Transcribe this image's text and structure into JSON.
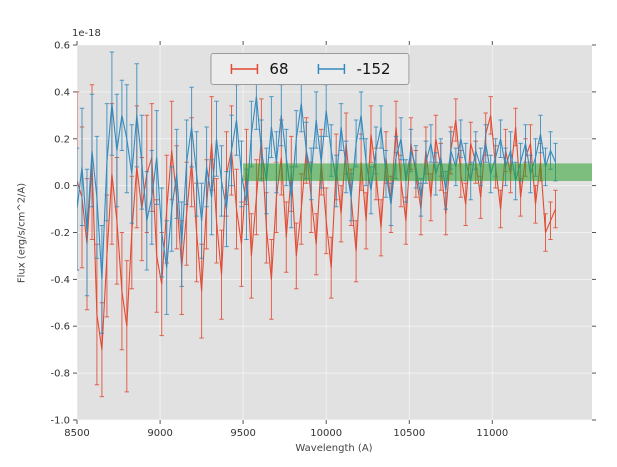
{
  "figure": {
    "background": "#ffffff",
    "plot_background": "#e1e1e1",
    "grid_color": "#ffffff",
    "tick_color": "#555555",
    "text_color": "#333333"
  },
  "chart_data": {
    "type": "line",
    "subtype": "errorbar-spectrum",
    "title": "",
    "offset_text": "1e-18",
    "xlabel": "Wavelength (A)",
    "ylabel": "Flux (erg/s/cm^2/A)",
    "xlim": [
      8500,
      11600
    ],
    "ylim": [
      -1.0,
      0.6
    ],
    "x_ticks": [
      8500,
      9000,
      9500,
      10000,
      10500,
      11000
    ],
    "y_ticks": [
      -1.0,
      -0.8,
      -0.6,
      -0.4,
      -0.2,
      0.0,
      0.2,
      0.4,
      0.6
    ],
    "y_tick_labels": [
      "-1.0",
      "-0.8",
      "-0.6",
      "-0.4",
      "-0.2",
      "0.0",
      "0.2",
      "0.4",
      "0.6"
    ],
    "units_note": "flux values plotted in units of 1e-18 erg/s/cm^2/A",
    "legend_position": "upper center",
    "grid": true,
    "x_start": 8500,
    "x_step": 30,
    "band": {
      "x0": 9500,
      "x1": 11600,
      "y0": 0.02,
      "y1": 0.095,
      "color": "#2ca02c",
      "opacity": 0.55
    },
    "series": [
      {
        "name": "68",
        "color": "#e24a33",
        "y": [
          0.02,
          -0.05,
          -0.25,
          0.1,
          -0.55,
          -0.7,
          -0.3,
          0.05,
          -0.15,
          -0.45,
          -0.6,
          -0.2,
          0.08,
          -0.1,
          0.05,
          0.12,
          -0.3,
          -0.42,
          -0.1,
          0.15,
          -0.05,
          -0.35,
          -0.12,
          0.1,
          -0.2,
          -0.45,
          -0.08,
          0.18,
          -0.15,
          -0.38,
          0.05,
          0.15,
          -0.1,
          -0.25,
          0.08,
          -0.3,
          -0.05,
          0.2,
          -0.18,
          -0.4,
          -0.05,
          0.12,
          -0.22,
          0.05,
          -0.3,
          -0.1,
          0.15,
          -0.05,
          -0.25,
          0.1,
          -0.15,
          -0.35,
          0.08,
          -0.12,
          0.18,
          -0.05,
          -0.28,
          0.1,
          -0.15,
          0.22,
          0.05,
          -0.18,
          0.12,
          -0.08,
          0.25,
          0.02,
          -0.15,
          0.18,
          0.05,
          -0.1,
          0.15,
          -0.05,
          0.2,
          0.08,
          -0.12,
          0.15,
          0.28,
          0.05,
          -0.08,
          0.18,
          0.1,
          -0.05,
          0.22,
          0.3,
          0.08,
          -0.1,
          0.15,
          0.05,
          0.25,
          -0.05,
          0.12,
          0.18,
          -0.08,
          0.1,
          -0.2,
          -0.15,
          -0.1
        ],
        "err": [
          0.38,
          0.3,
          0.28,
          0.33,
          0.3,
          0.2,
          0.26,
          0.3,
          0.27,
          0.25,
          0.28,
          0.24,
          0.26,
          0.22,
          0.25,
          0.23,
          0.24,
          0.22,
          0.23,
          0.21,
          0.22,
          0.2,
          0.22,
          0.19,
          0.21,
          0.2,
          0.19,
          0.2,
          0.18,
          0.19,
          0.18,
          0.19,
          0.17,
          0.18,
          0.16,
          0.18,
          0.16,
          0.17,
          0.15,
          0.17,
          0.15,
          0.16,
          0.15,
          0.16,
          0.14,
          0.15,
          0.14,
          0.15,
          0.13,
          0.14,
          0.14,
          0.13,
          0.14,
          0.12,
          0.13,
          0.12,
          0.13,
          0.12,
          0.12,
          0.12,
          0.11,
          0.12,
          0.11,
          0.12,
          0.11,
          0.11,
          0.1,
          0.11,
          0.1,
          0.11,
          0.1,
          0.1,
          0.1,
          0.1,
          0.09,
          0.1,
          0.09,
          0.1,
          0.09,
          0.09,
          0.09,
          0.09,
          0.09,
          0.08,
          0.09,
          0.08,
          0.09,
          0.08,
          0.08,
          0.08,
          0.08,
          0.08,
          0.08,
          0.08,
          0.08,
          0.08,
          0.08
        ]
      },
      {
        "name": "-152",
        "color": "#348abd",
        "y": [
          -0.1,
          0.08,
          -0.2,
          0.15,
          -0.05,
          -0.4,
          0.1,
          0.35,
          0.15,
          0.3,
          0.2,
          0.05,
          0.3,
          0.1,
          -0.15,
          -0.05,
          0.12,
          -0.2,
          -0.35,
          -0.1,
          0.05,
          -0.25,
          0.1,
          0.25,
          0.05,
          -0.15,
          0.08,
          -0.05,
          0.2,
          0.02,
          -0.1,
          0.15,
          0.28,
          0.05,
          -0.08,
          0.22,
          0.38,
          0.15,
          0.02,
          0.25,
          0.1,
          0.3,
          0.12,
          -0.05,
          0.2,
          0.35,
          0.15,
          0.05,
          0.28,
          0.1,
          0.32,
          0.15,
          0.02,
          0.25,
          0.08,
          -0.05,
          0.18,
          0.3,
          0.1,
          -0.02,
          0.15,
          0.25,
          0.05,
          -0.08,
          0.12,
          0.2,
          0.02,
          0.15,
          0.08,
          -0.05,
          0.1,
          0.18,
          0.05,
          0.12,
          -0.02,
          0.15,
          0.08,
          0.2,
          0.1,
          0.02,
          0.15,
          0.08,
          0.18,
          0.05,
          0.12,
          0.2,
          0.08,
          0.15,
          0.02,
          0.1,
          0.18,
          0.05,
          0.12,
          0.22,
          0.08,
          0.15,
          0.1
        ],
        "err": [
          0.26,
          0.25,
          0.27,
          0.24,
          0.26,
          0.23,
          0.25,
          0.22,
          0.24,
          0.15,
          0.23,
          0.21,
          0.22,
          0.2,
          0.21,
          0.2,
          0.2,
          0.19,
          0.2,
          0.18,
          0.19,
          0.18,
          0.18,
          0.17,
          0.18,
          0.16,
          0.17,
          0.16,
          0.16,
          0.15,
          0.16,
          0.15,
          0.15,
          0.14,
          0.15,
          0.14,
          0.14,
          0.13,
          0.14,
          0.13,
          0.13,
          0.13,
          0.12,
          0.13,
          0.12,
          0.12,
          0.12,
          0.11,
          0.12,
          0.11,
          0.11,
          0.11,
          0.11,
          0.1,
          0.11,
          0.1,
          0.1,
          0.1,
          0.1,
          0.1,
          0.1,
          0.09,
          0.1,
          0.09,
          0.09,
          0.09,
          0.09,
          0.09,
          0.09,
          0.08,
          0.09,
          0.08,
          0.09,
          0.08,
          0.08,
          0.08,
          0.08,
          0.08,
          0.08,
          0.08,
          0.08,
          0.08,
          0.08,
          0.08,
          0.08,
          0.08,
          0.08,
          0.08,
          0.08,
          0.08,
          0.08,
          0.08,
          0.08,
          0.08,
          0.08,
          0.08,
          0.08
        ]
      }
    ]
  }
}
